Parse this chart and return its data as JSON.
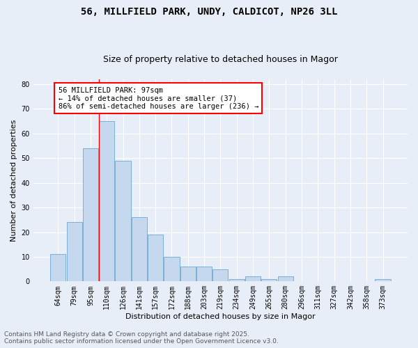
{
  "title_line1": "56, MILLFIELD PARK, UNDY, CALDICOT, NP26 3LL",
  "title_line2": "Size of property relative to detached houses in Magor",
  "xlabel": "Distribution of detached houses by size in Magor",
  "ylabel": "Number of detached properties",
  "categories": [
    "64sqm",
    "79sqm",
    "95sqm",
    "110sqm",
    "126sqm",
    "141sqm",
    "157sqm",
    "172sqm",
    "188sqm",
    "203sqm",
    "219sqm",
    "234sqm",
    "249sqm",
    "265sqm",
    "280sqm",
    "296sqm",
    "311sqm",
    "327sqm",
    "342sqm",
    "358sqm",
    "373sqm"
  ],
  "values": [
    11,
    24,
    54,
    65,
    49,
    26,
    19,
    10,
    6,
    6,
    5,
    1,
    2,
    1,
    2,
    0,
    0,
    0,
    0,
    0,
    1
  ],
  "bar_color": "#c5d8ed",
  "bar_edge_color": "#7aafd4",
  "background_color": "#e8eef7",
  "grid_color": "#ffffff",
  "redline_x": 2.5,
  "annotation_text": "56 MILLFIELD PARK: 97sqm\n← 14% of detached houses are smaller (37)\n86% of semi-detached houses are larger (236) →",
  "annotation_box_color": "white",
  "annotation_box_edge_color": "red",
  "ylim": [
    0,
    82
  ],
  "yticks": [
    0,
    10,
    20,
    30,
    40,
    50,
    60,
    70,
    80
  ],
  "footer_text": "Contains HM Land Registry data © Crown copyright and database right 2025.\nContains public sector information licensed under the Open Government Licence v3.0.",
  "title_fontsize": 10,
  "subtitle_fontsize": 9,
  "axis_label_fontsize": 8,
  "tick_fontsize": 7,
  "annotation_fontsize": 7.5,
  "footer_fontsize": 6.5
}
